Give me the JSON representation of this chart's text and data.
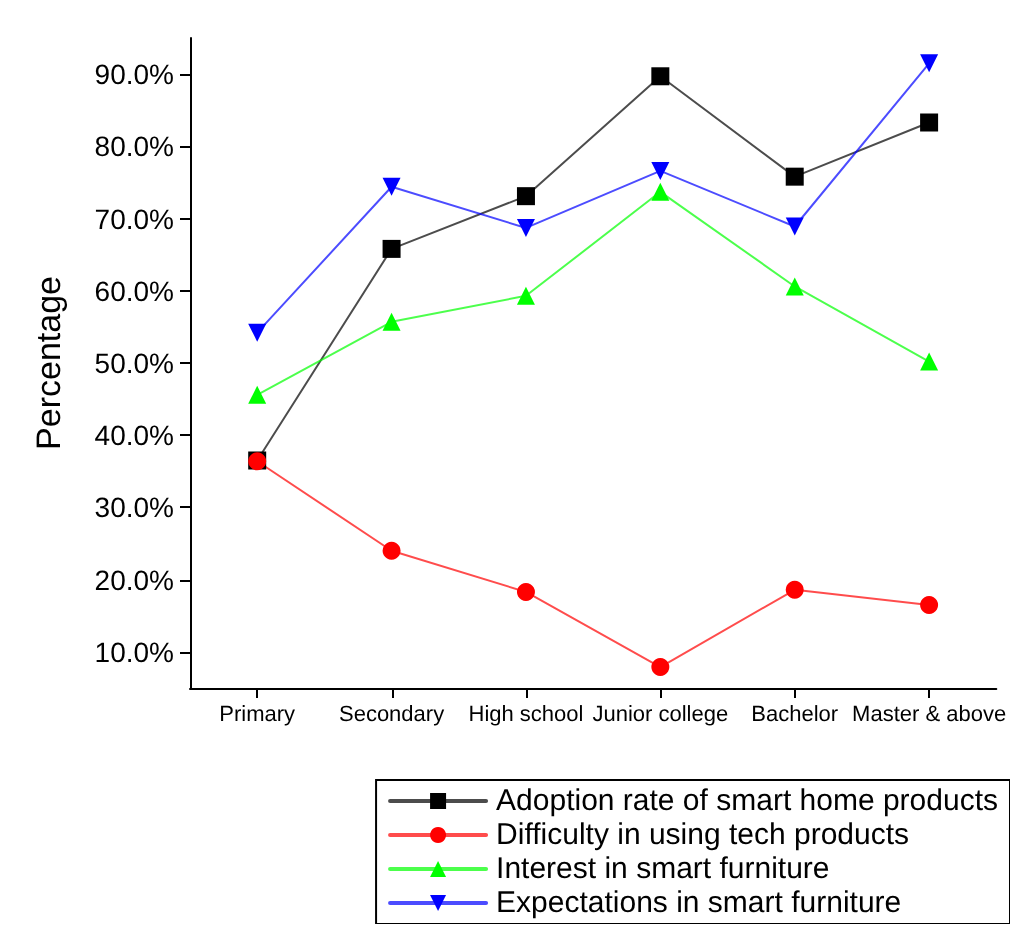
{
  "chart_data": {
    "type": "line",
    "ylabel": "Percentage",
    "categories": [
      "Primary",
      "Secondary",
      "High school",
      "Junior college",
      "Bachelor",
      "Master & above"
    ],
    "series": [
      {
        "name": "Adoption rate of smart home products",
        "color": "#000000",
        "marker": "square",
        "values": [
          36.5,
          65.8,
          73.1,
          89.7,
          75.8,
          83.3
        ]
      },
      {
        "name": "Difficulty in using tech products",
        "color": "#ff0000",
        "marker": "circle",
        "values": [
          36.4,
          24.0,
          18.3,
          7.9,
          18.6,
          16.5
        ]
      },
      {
        "name": "Interest in smart furniture",
        "color": "#00ff00",
        "marker": "triangle",
        "values": [
          45.6,
          55.7,
          59.3,
          73.7,
          60.6,
          50.2
        ]
      },
      {
        "name": "Expectations in smart furniture",
        "color": "#0000ff",
        "marker": "triangle-down",
        "values": [
          54.2,
          74.4,
          68.7,
          76.6,
          68.9,
          91.5
        ]
      }
    ],
    "ylim": [
      5,
      95
    ],
    "yticks": [
      {
        "value": 10,
        "label": "10.0%"
      },
      {
        "value": 20,
        "label": "20.0%"
      },
      {
        "value": 30,
        "label": "30.0%"
      },
      {
        "value": 40,
        "label": "40.0%"
      },
      {
        "value": 50,
        "label": "50.0%"
      },
      {
        "value": 60,
        "label": "60.0%"
      },
      {
        "value": 70,
        "label": "70.0%"
      },
      {
        "value": 80,
        "label": "80.0%"
      },
      {
        "value": 90,
        "label": "90.0%"
      }
    ],
    "grid": false,
    "legend": "bottom right",
    "line_style": "solid"
  }
}
